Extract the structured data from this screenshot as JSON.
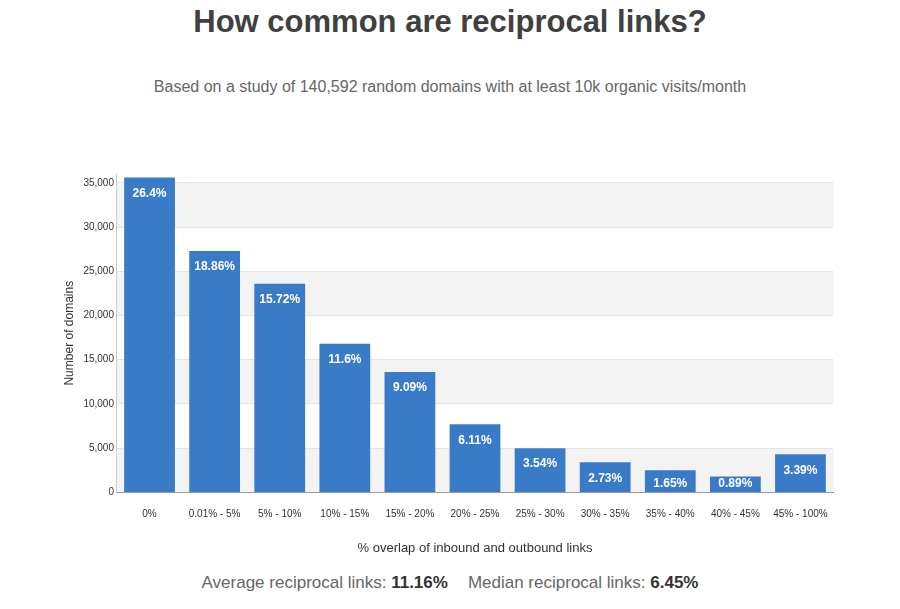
{
  "chart_data": {
    "type": "bar",
    "title": "How common are reciprocal links?",
    "subtitle": "Based on a study of 140,592 random domains with at least 10k organic visits/month",
    "x_label": "% overlap of inbound and outbound links",
    "y_label": "Number of domains",
    "categories": [
      "0%",
      "0.01% - 5%",
      "5% - 10%",
      "10% - 15%",
      "15% - 20%",
      "20% - 25%",
      "25% - 30%",
      "30% - 35%",
      "35% - 40%",
      "40% - 45%",
      "45% - 100%"
    ],
    "values": [
      35600,
      27300,
      23600,
      16800,
      13600,
      7700,
      5000,
      3400,
      2500,
      1800,
      4300
    ],
    "bar_labels": [
      "26.4%",
      "18.86%",
      "15.72%",
      "11.6%",
      "9.09%",
      "6.11%",
      "3.54%",
      "2.73%",
      "1.65%",
      "0.89%",
      "3.39%"
    ],
    "color": "#3a7bc8",
    "ylim": [
      0,
      36000
    ],
    "yticks": [
      0,
      {
        "value": 5000,
        "label": "5,000"
      },
      {
        "value": 10000,
        "label": "10,000"
      },
      {
        "value": 15000,
        "label": "15,000"
      },
      {
        "value": 20000,
        "label": "20,000"
      },
      {
        "value": 25000,
        "label": "25,000"
      },
      {
        "value": 30000,
        "label": "30,000"
      },
      {
        "value": 35000,
        "label": "35,000"
      }
    ],
    "grid": true,
    "footer": [
      {
        "label": "Average reciprocal links:",
        "value": "11.16%"
      },
      {
        "label": "Median reciprocal links:",
        "value": "6.45%"
      }
    ]
  }
}
